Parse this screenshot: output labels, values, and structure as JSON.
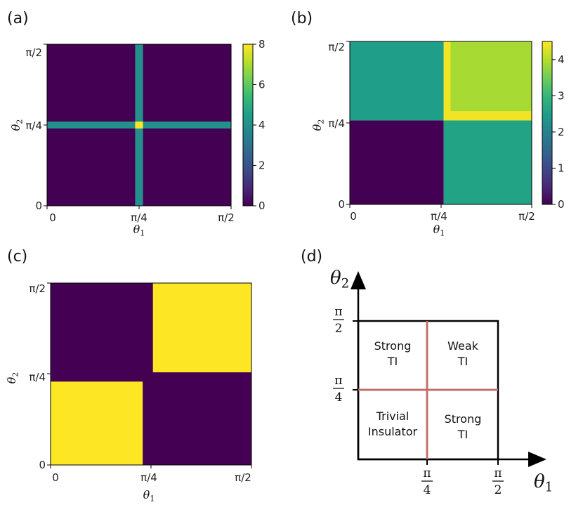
{
  "colormap": "viridis",
  "colors": {
    "viridis_stops": [
      "#440154",
      "#482878",
      "#3e4a89",
      "#31688e",
      "#26828e",
      "#1f9e89",
      "#35b779",
      "#6ece58",
      "#b5de2b",
      "#fde725"
    ],
    "phase_boundary": "#c0706a",
    "axes": "#000000"
  },
  "chart_data": [
    {
      "panel": "(a)",
      "type": "heatmap",
      "xlabel": "θ1",
      "ylabel": "θ2",
      "x_range": [
        0,
        1.5708
      ],
      "y_range": [
        0,
        1.5708
      ],
      "x_ticks": [
        "0",
        "π/4",
        "π/2"
      ],
      "y_ticks": [
        "0",
        "π/4",
        "π/2"
      ],
      "colorbar": {
        "min": 0,
        "max": 8,
        "ticks": [
          "0",
          "2",
          "4",
          "6",
          "8"
        ]
      },
      "regions": [
        {
          "x": [
            0,
            1.5708
          ],
          "y": [
            0,
            1.5708
          ],
          "value": 0
        },
        {
          "x": [
            0,
            1.5708
          ],
          "y": [
            0.752,
            0.819
          ],
          "value": 4
        },
        {
          "x": [
            0.752,
            0.819
          ],
          "y": [
            0,
            1.5708
          ],
          "value": 4
        },
        {
          "x": [
            0.752,
            0.819
          ],
          "y": [
            0.752,
            0.819
          ],
          "value": 8
        }
      ]
    },
    {
      "panel": "(b)",
      "type": "heatmap",
      "xlabel": "θ1",
      "ylabel": "θ2",
      "x_range": [
        0,
        1.5708
      ],
      "y_range": [
        0,
        1.5708
      ],
      "x_ticks": [
        "0",
        "π/4",
        "π/2"
      ],
      "y_ticks": [
        "0",
        "π/4",
        "π/2"
      ],
      "colorbar": {
        "min": 0,
        "max": 4.5,
        "ticks": [
          "0",
          "1",
          "2",
          "3",
          "4"
        ]
      },
      "regions": [
        {
          "x": [
            0,
            0.81
          ],
          "y": [
            0,
            0.81
          ],
          "value": 0
        },
        {
          "x": [
            0,
            0.81
          ],
          "y": [
            0.81,
            1.5708
          ],
          "value": 2.5
        },
        {
          "x": [
            0.81,
            1.5708
          ],
          "y": [
            0,
            0.81
          ],
          "value": 2.6
        },
        {
          "x": [
            0.81,
            1.5708
          ],
          "y": [
            0.81,
            1.5708
          ],
          "value": 3.9
        },
        {
          "x": [
            0.81,
            1.5708
          ],
          "y": [
            0.81,
            0.9
          ],
          "value": 4.4
        },
        {
          "x": [
            0.81,
            0.87
          ],
          "y": [
            0.81,
            1.5708
          ],
          "value": 4.4
        }
      ]
    },
    {
      "panel": "(c)",
      "type": "heatmap",
      "xlabel": "θ1",
      "ylabel": "θ2",
      "x_range": [
        0,
        1.5708
      ],
      "y_range": [
        0,
        1.5708
      ],
      "x_ticks": [
        "0",
        "π/4",
        "π/2"
      ],
      "y_ticks": [
        "0",
        "π/4",
        "π/2"
      ],
      "value_range": [
        0,
        1
      ],
      "regions": [
        {
          "x": [
            0,
            1.5708
          ],
          "y": [
            0,
            1.5708
          ],
          "value": 0
        },
        {
          "x": [
            0,
            0.72
          ],
          "y": [
            0,
            0.72
          ],
          "value": 1
        },
        {
          "x": [
            0.8,
            1.5708
          ],
          "y": [
            0.8,
            1.5708
          ],
          "value": 1
        }
      ]
    },
    {
      "panel": "(d)",
      "type": "diagram",
      "xlabel": "θ1",
      "ylabel": "θ2",
      "x_ticks": [
        {
          "num": "π",
          "den": "4"
        },
        {
          "num": "π",
          "den": "2"
        }
      ],
      "y_ticks": [
        {
          "num": "π",
          "den": "2"
        },
        {
          "num": "π",
          "den": "4"
        }
      ],
      "quadrants": [
        {
          "position": "top-left",
          "lines": [
            "Strong",
            "TI"
          ]
        },
        {
          "position": "top-right",
          "lines": [
            "Weak",
            "TI"
          ]
        },
        {
          "position": "bottom-left",
          "lines": [
            "Trivial",
            "Insulator"
          ]
        },
        {
          "position": "bottom-right",
          "lines": [
            "Strong",
            "TI"
          ]
        }
      ]
    }
  ]
}
